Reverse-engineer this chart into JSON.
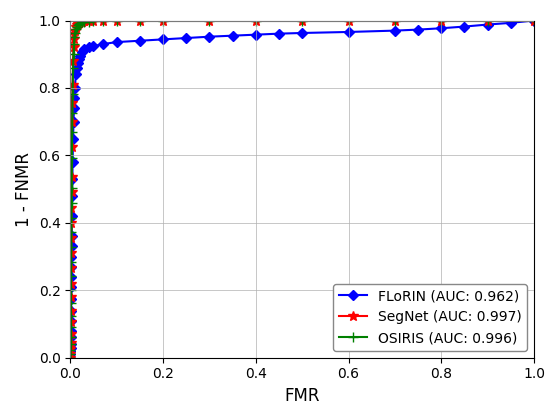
{
  "title": "",
  "xlabel": "FMR",
  "ylabel": "1 - FNMR",
  "xlim": [
    0.0,
    1.0
  ],
  "ylim": [
    0.0,
    1.0
  ],
  "xticks": [
    0.0,
    0.2,
    0.4,
    0.6,
    0.8,
    1.0
  ],
  "yticks": [
    0.0,
    0.2,
    0.4,
    0.6,
    0.8,
    1.0
  ],
  "grid": true,
  "legend_loc": "lower right",
  "series": [
    {
      "label": "FLoRIN (AUC: 0.962)",
      "color": "#0000ff",
      "marker": "D",
      "markersize": 5,
      "linewidth": 1.5,
      "markevery": 1,
      "x": [
        0.0,
        0.0002,
        0.0004,
        0.0006,
        0.0008,
        0.001,
        0.0012,
        0.0014,
        0.0016,
        0.0018,
        0.002,
        0.0022,
        0.0024,
        0.0026,
        0.0028,
        0.003,
        0.0035,
        0.004,
        0.0045,
        0.005,
        0.006,
        0.007,
        0.008,
        0.009,
        0.01,
        0.012,
        0.014,
        0.016,
        0.018,
        0.02,
        0.025,
        0.03,
        0.04,
        0.05,
        0.07,
        0.1,
        0.15,
        0.2,
        0.25,
        0.3,
        0.35,
        0.4,
        0.45,
        0.5,
        0.6,
        0.7,
        0.75,
        0.8,
        0.85,
        0.9,
        0.95,
        1.0
      ],
      "y": [
        0.0,
        0.01,
        0.02,
        0.03,
        0.04,
        0.06,
        0.08,
        0.11,
        0.14,
        0.175,
        0.21,
        0.24,
        0.27,
        0.3,
        0.33,
        0.36,
        0.42,
        0.48,
        0.53,
        0.58,
        0.65,
        0.7,
        0.74,
        0.77,
        0.8,
        0.84,
        0.86,
        0.875,
        0.885,
        0.895,
        0.908,
        0.915,
        0.92,
        0.924,
        0.93,
        0.936,
        0.94,
        0.944,
        0.948,
        0.952,
        0.955,
        0.958,
        0.961,
        0.963,
        0.966,
        0.97,
        0.973,
        0.977,
        0.982,
        0.988,
        0.993,
        1.0
      ]
    },
    {
      "label": "SegNet (AUC: 0.997)",
      "color": "#ff0000",
      "marker": "*",
      "markersize": 7,
      "linewidth": 1.5,
      "markevery": 1,
      "x": [
        0.0,
        0.0002,
        0.0004,
        0.0006,
        0.0008,
        0.001,
        0.0012,
        0.0014,
        0.0016,
        0.0018,
        0.002,
        0.0022,
        0.0024,
        0.0026,
        0.0028,
        0.003,
        0.0035,
        0.004,
        0.0045,
        0.005,
        0.006,
        0.007,
        0.008,
        0.009,
        0.01,
        0.012,
        0.014,
        0.016,
        0.018,
        0.02,
        0.025,
        0.03,
        0.04,
        0.05,
        0.07,
        0.1,
        0.15,
        0.2,
        0.3,
        0.4,
        0.5,
        0.6,
        0.7,
        0.8,
        0.9,
        1.0
      ],
      "y": [
        0.0,
        0.01,
        0.025,
        0.045,
        0.07,
        0.105,
        0.14,
        0.18,
        0.22,
        0.265,
        0.31,
        0.355,
        0.4,
        0.445,
        0.49,
        0.535,
        0.625,
        0.7,
        0.755,
        0.81,
        0.88,
        0.92,
        0.945,
        0.96,
        0.97,
        0.98,
        0.987,
        0.99,
        0.993,
        0.995,
        0.997,
        0.998,
        0.999,
        0.999,
        1.0,
        1.0,
        1.0,
        1.0,
        1.0,
        1.0,
        1.0,
        1.0,
        1.0,
        1.0,
        1.0,
        1.0
      ]
    },
    {
      "label": "OSIRIS (AUC: 0.996)",
      "color": "#008000",
      "marker": "+",
      "markersize": 7,
      "linewidth": 1.5,
      "markevery": 1,
      "x": [
        0.0,
        0.0002,
        0.0004,
        0.0006,
        0.0008,
        0.001,
        0.0012,
        0.0014,
        0.0016,
        0.0018,
        0.002,
        0.0022,
        0.0024,
        0.0026,
        0.0028,
        0.003,
        0.0035,
        0.004,
        0.0045,
        0.005,
        0.006,
        0.007,
        0.008,
        0.009,
        0.01,
        0.012,
        0.014,
        0.016,
        0.018,
        0.02,
        0.025,
        0.03,
        0.04,
        0.05,
        0.07,
        0.1,
        0.15,
        0.2,
        0.3,
        0.4,
        0.5,
        0.6,
        0.7,
        0.8,
        0.9,
        1.0
      ],
      "y": [
        0.0,
        0.01,
        0.022,
        0.04,
        0.062,
        0.092,
        0.125,
        0.162,
        0.2,
        0.242,
        0.285,
        0.328,
        0.372,
        0.415,
        0.458,
        0.502,
        0.592,
        0.668,
        0.726,
        0.782,
        0.858,
        0.902,
        0.93,
        0.95,
        0.963,
        0.975,
        0.982,
        0.986,
        0.989,
        0.992,
        0.995,
        0.996,
        0.997,
        0.998,
        0.999,
        1.0,
        1.0,
        1.0,
        1.0,
        1.0,
        1.0,
        1.0,
        1.0,
        1.0,
        1.0,
        1.0
      ]
    }
  ]
}
